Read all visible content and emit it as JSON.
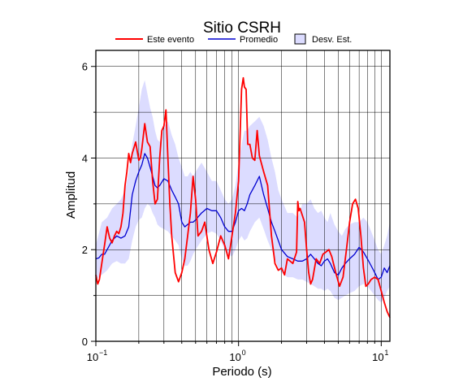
{
  "chart_data": {
    "type": "line",
    "title": "Sitio CSRH",
    "xlabel": "Periodo (s)",
    "ylabel": "Amplitud",
    "x_scale": "log",
    "xlim": [
      0.1,
      11.5
    ],
    "ylim": [
      0,
      6.35
    ],
    "x_ticks": [
      {
        "value": 0.1,
        "base": "10",
        "exp": "−1"
      },
      {
        "value": 1,
        "base": "10",
        "exp": "0"
      },
      {
        "value": 10,
        "base": "10",
        "exp": "1"
      }
    ],
    "y_ticks": [
      0,
      2,
      4,
      6
    ],
    "grid": true,
    "legend_position": "top",
    "legend": {
      "este": "Este evento",
      "promedio": "Promedio",
      "desv": "Desv. Est."
    },
    "colors": {
      "este": "#ff0000",
      "promedio": "#0000d0",
      "band_fill": "#dcdcff",
      "band_stroke": "#000000",
      "grid": "#000000"
    },
    "series": [
      {
        "name": "Este evento",
        "x": [
          0.1,
          0.103,
          0.106,
          0.11,
          0.115,
          0.12,
          0.125,
          0.13,
          0.135,
          0.14,
          0.145,
          0.15,
          0.155,
          0.16,
          0.165,
          0.17,
          0.175,
          0.18,
          0.19,
          0.2,
          0.205,
          0.21,
          0.22,
          0.23,
          0.24,
          0.25,
          0.26,
          0.27,
          0.28,
          0.29,
          0.3,
          0.31,
          0.32,
          0.33,
          0.34,
          0.36,
          0.38,
          0.4,
          0.42,
          0.44,
          0.46,
          0.48,
          0.5,
          0.52,
          0.55,
          0.58,
          0.62,
          0.66,
          0.7,
          0.75,
          0.8,
          0.85,
          0.9,
          0.95,
          1.0,
          1.05,
          1.08,
          1.1,
          1.13,
          1.16,
          1.2,
          1.25,
          1.3,
          1.35,
          1.4,
          1.5,
          1.6,
          1.7,
          1.75,
          1.8,
          1.9,
          2.0,
          2.1,
          2.2,
          2.4,
          2.55,
          2.6,
          2.65,
          2.7,
          2.8,
          2.9,
          3.0,
          3.1,
          3.2,
          3.3,
          3.5,
          3.7,
          3.9,
          4.1,
          4.3,
          4.5,
          4.8,
          5.1,
          5.4,
          5.7,
          6.0,
          6.3,
          6.6,
          6.9,
          7.2,
          7.5,
          7.8,
          8.1,
          8.5,
          9.0,
          9.5,
          10.0,
          10.5,
          11.0,
          11.5
        ],
        "y": [
          1.45,
          1.25,
          1.35,
          1.7,
          2.1,
          2.5,
          2.25,
          2.15,
          2.3,
          2.4,
          2.35,
          2.5,
          2.8,
          3.4,
          3.7,
          4.1,
          3.9,
          4.1,
          4.35,
          3.95,
          4.0,
          4.2,
          4.75,
          4.35,
          4.25,
          3.5,
          3.0,
          3.1,
          4.0,
          4.6,
          4.7,
          5.05,
          4.0,
          3.0,
          2.3,
          1.5,
          1.3,
          1.5,
          1.8,
          2.3,
          2.8,
          3.6,
          3.1,
          2.3,
          2.4,
          2.6,
          2.0,
          1.7,
          1.95,
          2.3,
          2.1,
          1.8,
          2.3,
          2.8,
          3.5,
          5.5,
          5.75,
          5.55,
          5.5,
          4.3,
          4.3,
          4.0,
          3.95,
          4.6,
          4.05,
          3.7,
          3.4,
          2.3,
          2.0,
          1.7,
          1.55,
          1.6,
          1.45,
          1.8,
          1.7,
          1.95,
          3.05,
          2.85,
          2.9,
          2.75,
          2.6,
          2.0,
          1.5,
          1.25,
          1.35,
          1.8,
          1.7,
          1.9,
          1.95,
          2.0,
          1.85,
          1.5,
          1.2,
          1.4,
          2.0,
          2.6,
          3.0,
          3.1,
          2.9,
          2.3,
          1.6,
          1.2,
          1.25,
          1.35,
          1.4,
          1.35,
          1.1,
          0.85,
          0.65,
          0.52
        ]
      },
      {
        "name": "Promedio",
        "x": [
          0.1,
          0.105,
          0.11,
          0.115,
          0.12,
          0.13,
          0.14,
          0.15,
          0.16,
          0.17,
          0.18,
          0.19,
          0.2,
          0.21,
          0.22,
          0.23,
          0.24,
          0.25,
          0.26,
          0.27,
          0.28,
          0.3,
          0.32,
          0.34,
          0.36,
          0.38,
          0.4,
          0.42,
          0.44,
          0.46,
          0.48,
          0.5,
          0.55,
          0.6,
          0.65,
          0.7,
          0.75,
          0.8,
          0.85,
          0.9,
          0.95,
          1.0,
          1.05,
          1.1,
          1.15,
          1.2,
          1.3,
          1.4,
          1.5,
          1.6,
          1.7,
          1.8,
          1.9,
          2.0,
          2.2,
          2.4,
          2.6,
          2.8,
          3.0,
          3.2,
          3.4,
          3.6,
          3.8,
          4.0,
          4.2,
          4.4,
          4.7,
          5.0,
          5.3,
          5.6,
          6.0,
          6.5,
          7.0,
          7.5,
          8.0,
          8.5,
          9.0,
          9.5,
          10.0,
          10.5,
          11.0,
          11.5
        ],
        "y": [
          1.8,
          1.82,
          1.9,
          1.9,
          2.0,
          2.2,
          2.3,
          2.25,
          2.3,
          2.5,
          3.2,
          3.5,
          3.7,
          3.85,
          4.1,
          4.0,
          3.8,
          3.6,
          3.4,
          3.35,
          3.4,
          3.55,
          3.5,
          3.3,
          3.15,
          3.0,
          2.6,
          2.5,
          2.55,
          2.6,
          2.6,
          2.65,
          2.8,
          2.9,
          2.85,
          2.85,
          2.7,
          2.5,
          2.4,
          2.4,
          2.6,
          2.85,
          2.9,
          2.85,
          3.0,
          3.2,
          3.4,
          3.6,
          3.2,
          2.9,
          2.6,
          2.4,
          2.2,
          2.0,
          1.85,
          1.8,
          1.75,
          1.75,
          1.8,
          1.9,
          1.8,
          1.7,
          1.65,
          1.75,
          1.8,
          1.7,
          1.5,
          1.45,
          1.6,
          1.7,
          1.8,
          1.9,
          2.05,
          1.95,
          1.8,
          1.65,
          1.5,
          1.35,
          1.4,
          1.6,
          1.5,
          1.65
        ]
      }
    ],
    "band": {
      "name": "Desv. Est.",
      "x": [
        0.1,
        0.11,
        0.12,
        0.13,
        0.14,
        0.15,
        0.16,
        0.17,
        0.18,
        0.19,
        0.2,
        0.21,
        0.22,
        0.23,
        0.24,
        0.25,
        0.26,
        0.27,
        0.28,
        0.3,
        0.32,
        0.34,
        0.36,
        0.38,
        0.4,
        0.42,
        0.44,
        0.46,
        0.48,
        0.5,
        0.55,
        0.6,
        0.65,
        0.7,
        0.75,
        0.8,
        0.85,
        0.9,
        0.95,
        1.0,
        1.05,
        1.1,
        1.15,
        1.2,
        1.3,
        1.4,
        1.5,
        1.6,
        1.7,
        1.8,
        1.9,
        2.0,
        2.2,
        2.4,
        2.6,
        2.8,
        3.0,
        3.2,
        3.4,
        3.6,
        3.8,
        4.0,
        4.2,
        4.4,
        4.7,
        5.0,
        5.3,
        5.6,
        6.0,
        6.5,
        7.0,
        7.5,
        8.0,
        8.5,
        9.0,
        9.5,
        10.0,
        10.5,
        11.0,
        11.5
      ],
      "upper": [
        2.1,
        2.6,
        2.7,
        2.9,
        3.0,
        3.1,
        3.3,
        3.7,
        4.3,
        4.7,
        5.1,
        5.5,
        5.7,
        5.4,
        5.1,
        4.9,
        4.6,
        4.4,
        4.35,
        4.7,
        4.8,
        4.5,
        4.3,
        4.0,
        3.8,
        3.6,
        3.6,
        3.7,
        3.6,
        3.7,
        3.9,
        3.7,
        3.5,
        3.5,
        3.3,
        3.1,
        3.0,
        3.1,
        3.4,
        3.9,
        4.3,
        4.6,
        4.6,
        4.7,
        4.8,
        4.9,
        4.7,
        4.4,
        4.0,
        3.7,
        3.3,
        3.1,
        2.8,
        2.8,
        2.7,
        3.0,
        3.0,
        3.1,
        2.9,
        2.8,
        2.85,
        2.7,
        2.6,
        2.8,
        2.55,
        2.4,
        2.3,
        2.45,
        2.55,
        2.6,
        2.6,
        2.7,
        2.6,
        2.4,
        2.2,
        2.0,
        1.9,
        2.1,
        2.3,
        2.6
      ],
      "lower": [
        1.35,
        1.45,
        1.55,
        1.7,
        1.75,
        1.7,
        1.7,
        1.8,
        2.2,
        2.5,
        2.65,
        2.7,
        2.9,
        3.0,
        2.95,
        2.8,
        2.7,
        2.55,
        2.5,
        2.45,
        2.4,
        2.3,
        2.2,
        2.1,
        1.8,
        1.65,
        1.65,
        1.75,
        1.9,
        2.0,
        2.2,
        2.35,
        2.4,
        2.35,
        2.2,
        2.0,
        1.9,
        1.85,
        2.0,
        2.2,
        2.3,
        2.2,
        2.25,
        2.4,
        2.6,
        2.7,
        2.45,
        2.2,
        2.0,
        1.8,
        1.6,
        1.5,
        1.4,
        1.4,
        1.35,
        1.35,
        1.3,
        1.25,
        1.2,
        1.15,
        1.15,
        1.1,
        1.15,
        1.1,
        0.95,
        0.9,
        0.95,
        1.0,
        1.05,
        1.1,
        1.2,
        1.25,
        1.2,
        1.1,
        1.0,
        0.9,
        0.85,
        0.95,
        1.1,
        1.2
      ]
    }
  }
}
